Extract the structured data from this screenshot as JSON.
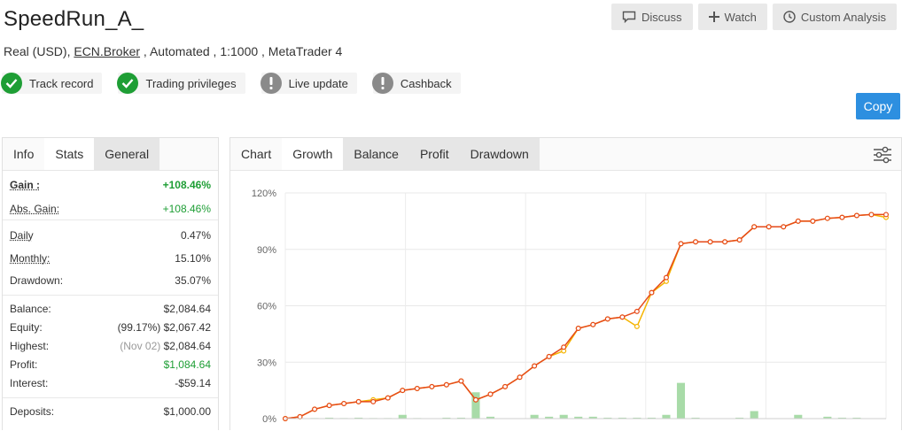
{
  "header": {
    "title": "SpeedRun_A_",
    "subline_prefix": "Real (USD), ",
    "broker_link": "ECN.Broker",
    "subline_suffix": " , Automated , 1:1000 , MetaTrader 4"
  },
  "topbar": {
    "discuss": "Discuss",
    "watch": "Watch",
    "custom_analysis": "Custom Analysis"
  },
  "badges": [
    {
      "label": "Track record",
      "status": "ok",
      "icon": "check-icon",
      "color": "#1e9e35"
    },
    {
      "label": "Trading privileges",
      "status": "ok",
      "icon": "check-icon",
      "color": "#1e9e35"
    },
    {
      "label": "Live update",
      "status": "warn",
      "icon": "exclamation-icon",
      "color": "#8a8a8a"
    },
    {
      "label": "Cashback",
      "status": "warn",
      "icon": "exclamation-icon",
      "color": "#8a8a8a"
    }
  ],
  "copy_label": "Copy",
  "left_tabs": [
    "Info",
    "Stats",
    "General"
  ],
  "stats": {
    "gain": {
      "label": "Gain :",
      "value": "+108.46%"
    },
    "abs_gain": {
      "label": "Abs. Gain:",
      "value": "+108.46%"
    },
    "daily": {
      "label": "Daily",
      "value": "0.47%"
    },
    "monthly": {
      "label": "Monthly:",
      "value": "15.10%"
    },
    "drawdown": {
      "label": "Drawdown:",
      "value": "35.07%"
    },
    "balance": {
      "label": "Balance:",
      "value": "$2,084.64"
    },
    "equity": {
      "label": "Equity:",
      "note": "(99.17%)",
      "value": "$2,067.42"
    },
    "highest": {
      "label": "Highest:",
      "note": "(Nov 02)",
      "value": "$2,084.64"
    },
    "profit": {
      "label": "Profit:",
      "value": "$1,084.64"
    },
    "interest": {
      "label": "Interest:",
      "value": "-$59.14"
    },
    "deposits": {
      "label": "Deposits:",
      "value": "$1,000.00"
    }
  },
  "chart_tabs": [
    "Chart",
    "Growth",
    "Balance",
    "Profit",
    "Drawdown"
  ],
  "colors": {
    "growth_line": "#e64a19",
    "equity_line": "#f5b400",
    "bars": "#a8dba8",
    "accent": "#2d8fe0",
    "positive": "#1e9e35"
  },
  "chart_data": {
    "type": "line",
    "title": "",
    "xlabel": "",
    "ylabel": "",
    "ylim": [
      0,
      120
    ],
    "yticks": [
      "0%",
      "30%",
      "60%",
      "90%",
      "120%"
    ],
    "ytick_values": [
      0,
      30,
      60,
      90,
      120
    ],
    "grid": true,
    "x": [
      0,
      1,
      2,
      3,
      4,
      5,
      6,
      7,
      8,
      9,
      10,
      11,
      12,
      13,
      14,
      15,
      16,
      17,
      18,
      19,
      20,
      21,
      22,
      23,
      24,
      25,
      26,
      27,
      28,
      29,
      30,
      31,
      32,
      33,
      34,
      35,
      36,
      37,
      38,
      39,
      40,
      41
    ],
    "series": [
      {
        "values": [
          0,
          1,
          5,
          7,
          8,
          9,
          9,
          11,
          15,
          16,
          17,
          18,
          20,
          10,
          13,
          17,
          22,
          28,
          33,
          38,
          48,
          50,
          53,
          54,
          57,
          67,
          75,
          93,
          94,
          94,
          94,
          95,
          102,
          102,
          102,
          105,
          105,
          106.5,
          107,
          108,
          108.5,
          108.5
        ]
      },
      {
        "values": [
          0,
          1,
          5,
          7,
          8,
          9,
          10,
          11,
          15,
          16,
          17,
          18,
          20,
          10,
          13,
          17,
          22,
          28,
          33,
          36,
          48,
          50,
          53,
          54,
          49,
          67,
          73,
          93,
          94,
          94,
          94,
          95,
          102,
          102,
          102,
          105,
          105,
          106.5,
          107,
          108,
          108.5,
          107
        ]
      },
      {
        "values": [
          0,
          0,
          0.3,
          0.5,
          0.3,
          0.5,
          0.3,
          0.3,
          2,
          0.3,
          0,
          0.5,
          0.5,
          14,
          1,
          0,
          0,
          2,
          1,
          2,
          1,
          1,
          0.5,
          0.5,
          0.5,
          0.5,
          2,
          19,
          0.5,
          0,
          0,
          0.5,
          4,
          0,
          0,
          2,
          0,
          1,
          0.5,
          0.5,
          0,
          0
        ]
      }
    ]
  }
}
